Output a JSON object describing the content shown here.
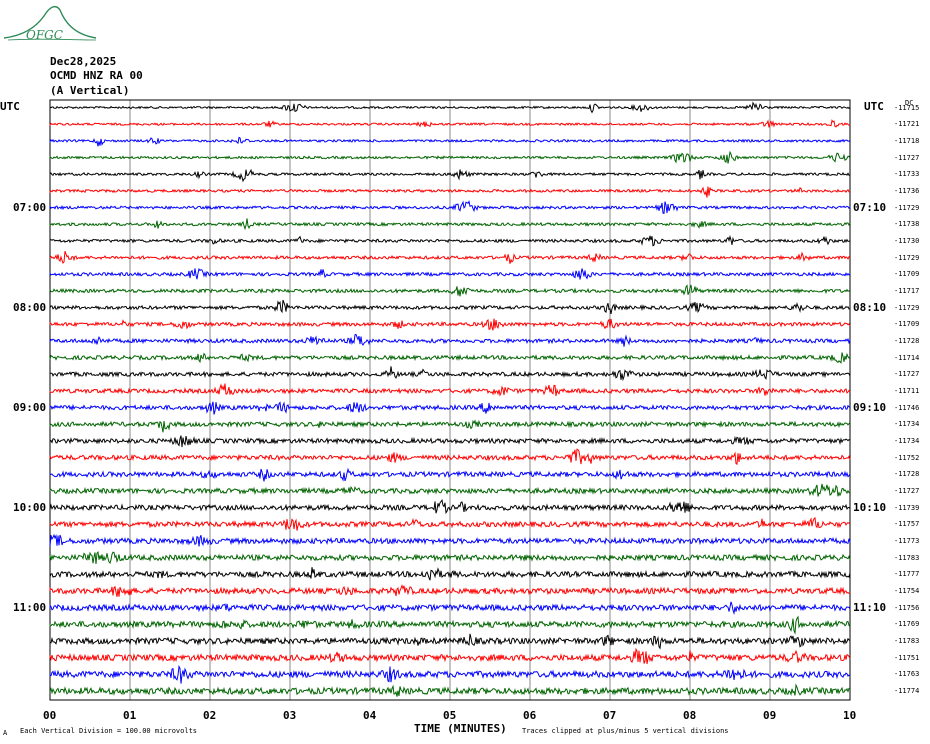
{
  "logo_text": "OFGC",
  "header": {
    "date": "Dec28,2025",
    "station": "OCMD HNZ RA 00",
    "component": "(A Vertical)"
  },
  "utc_left": "UTC",
  "utc_right": "UTC",
  "dc_label": "DC",
  "left_hour_labels": [
    "07:00",
    "08:00",
    "09:00",
    "10:00",
    "11:00"
  ],
  "right_hour_labels": [
    "07:10",
    "08:10",
    "09:10",
    "10:10",
    "11:10"
  ],
  "footer": {
    "xlabel": "TIME (MINUTES)",
    "scale_note": "Each Vertical Division =  100.00 microvolts",
    "clip_note": "Traces clipped at plus/minus 5 vertical divisions",
    "corner_mark": "A"
  },
  "colors": {
    "trace_cycle": [
      "#000000",
      "#ff0000",
      "#0000ff",
      "#006400"
    ],
    "grid": "#888888",
    "logo": "#2e8b57"
  },
  "chart_data": {
    "type": "line",
    "xlabel": "TIME (MINUTES)",
    "xlim": [
      0,
      10
    ],
    "x_ticks": [
      "00",
      "01",
      "02",
      "03",
      "04",
      "05",
      "06",
      "07",
      "08",
      "09",
      "10"
    ],
    "row_count": 36,
    "dc_offsets": [
      -11715,
      -11721,
      -11718,
      -11727,
      -11733,
      -11736,
      -11729,
      -11738,
      -11730,
      -11729,
      -11709,
      -11717,
      -11729,
      -11709,
      -11728,
      -11714,
      -11727,
      -11711,
      -11746,
      -11734,
      -11734,
      -11752,
      -11728,
      -11727,
      -11739,
      -11757,
      -11773,
      -11783,
      -11777,
      -11754,
      -11756,
      -11769,
      -11783,
      -11751,
      -11763,
      -11774
    ]
  }
}
